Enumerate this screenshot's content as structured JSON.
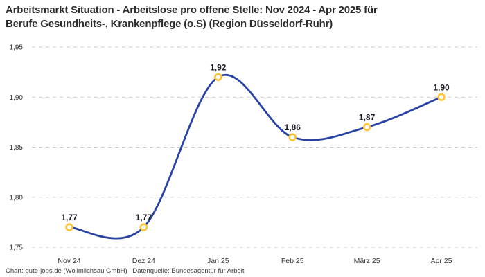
{
  "header": {
    "title_line1": "Arbeitsmarkt Situation - Arbeitslose pro offene Stelle: Nov 2024 - Apr 2025 für",
    "title_line2": "Berufe Gesundheits-, Krankenpflege (o.S) (Region Düsseldorf-Ruhr)"
  },
  "footer": {
    "credit": "Chart: gute-jobs.de (Wollmilchsau GmbH) | Datenquelle: Bundesagentur für Arbeit"
  },
  "chart_data": {
    "type": "line",
    "title": "Arbeitsmarkt Situation - Arbeitslose pro offene Stelle: Nov 2024 - Apr 2025 für Berufe Gesundheits-, Krankenpflege (o.S) (Region Düsseldorf-Ruhr)",
    "categories": [
      "Nov 24",
      "Dez 24",
      "Jan 25",
      "Feb 25",
      "März 25",
      "Apr 25"
    ],
    "values": [
      1.77,
      1.77,
      1.92,
      1.86,
      1.87,
      1.9
    ],
    "point_labels": [
      "1,77",
      "1,77",
      "1,92",
      "1,86",
      "1,87",
      "1,90"
    ],
    "xlabel": "",
    "ylabel": "",
    "ylim": [
      1.75,
      1.95
    ],
    "yticks": [
      {
        "value": 1.75,
        "label": "1,75"
      },
      {
        "value": 1.8,
        "label": "1,80"
      },
      {
        "value": 1.85,
        "label": "1,85"
      },
      {
        "value": 1.9,
        "label": "1,90"
      },
      {
        "value": 1.95,
        "label": "1,95"
      }
    ],
    "grid": "horizontal-dashed",
    "legend": "none",
    "smooth": true,
    "colors": {
      "line": "#2843A4",
      "marker_ring": "#FFC233",
      "marker_fill": "#ffffff",
      "grid_line": "#cbcbcb",
      "tick_text": "#333333",
      "point_label_text": "#1c1c28",
      "title_text": "#2d2d2d",
      "credit_text": "#3a3a3a",
      "background": "#ffffff"
    }
  }
}
